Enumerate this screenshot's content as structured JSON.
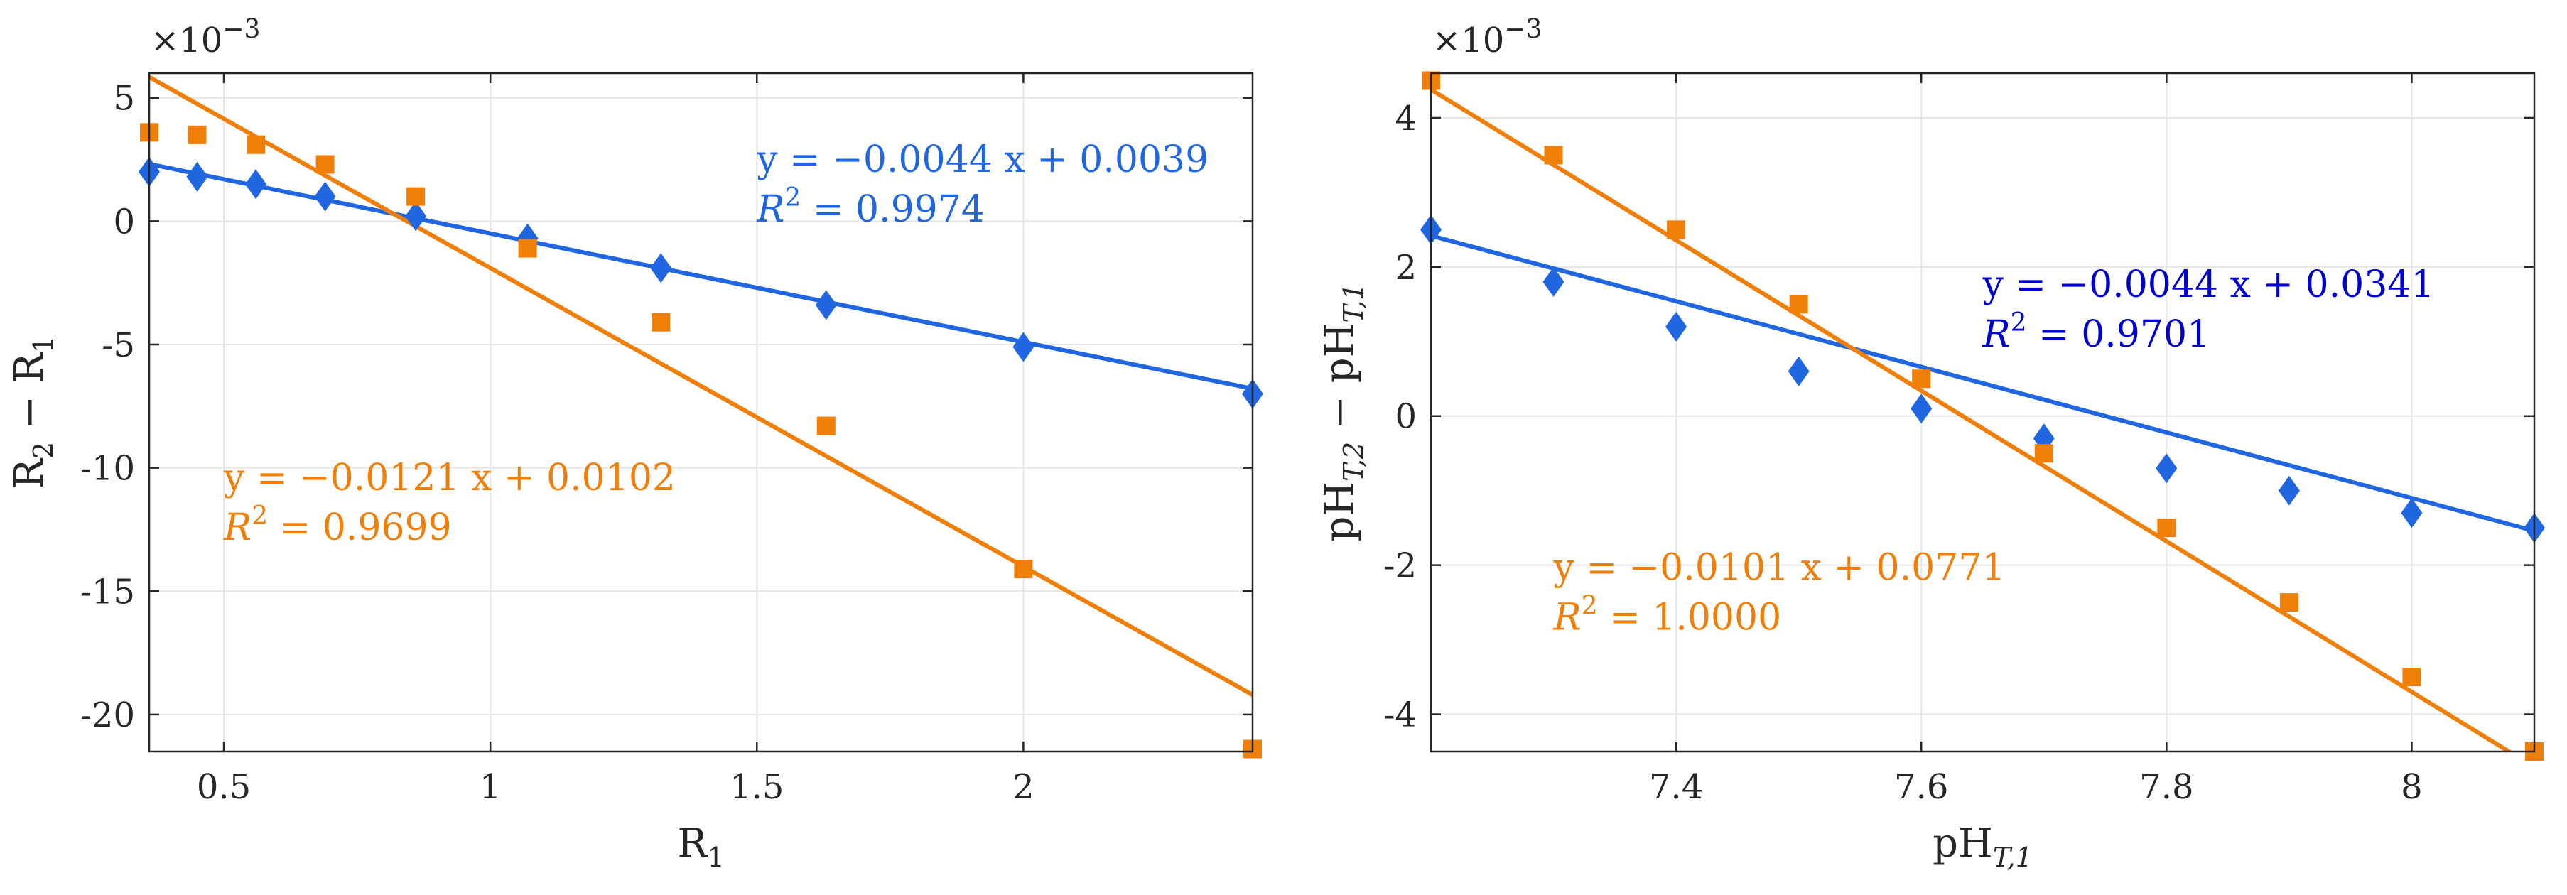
{
  "colors": {
    "blue": "#1f66e0",
    "orange": "#f07f0a",
    "annotation_blue_right": "#0000cc",
    "grid": "#e6e6e6",
    "axis": "#262626"
  },
  "marker_shapes": {
    "blue": "diamond",
    "orange": "square"
  },
  "chart_data": [
    {
      "type": "scatter",
      "xlabel": "R",
      "xlabel_sub": "1",
      "ylabel": "R",
      "ylabel_sub1": "2",
      "ylabel_mid": " − R",
      "ylabel_sub2": "1",
      "y_exponent": "×10",
      "y_exponent_power": "−3",
      "xlim": [
        0.36,
        2.43
      ],
      "ylim": [
        -21.5,
        6
      ],
      "x_ticks": [
        0.5,
        1,
        1.5,
        2
      ],
      "x_tick_labels": [
        "0.5",
        "1",
        "1.5",
        "2"
      ],
      "y_ticks": [
        -20,
        -15,
        -10,
        -5,
        0,
        5
      ],
      "y_tick_labels": [
        "-20",
        "-15",
        "-10",
        "-5",
        "0",
        "5"
      ],
      "grid": true,
      "series": [
        {
          "color": "blue",
          "marker": "diamond",
          "x": [
            0.36,
            0.45,
            0.56,
            0.69,
            0.86,
            1.07,
            1.32,
            1.63,
            2.0,
            2.43
          ],
          "y": [
            2.0,
            1.8,
            1.5,
            1.0,
            0.2,
            -0.7,
            -1.9,
            -3.4,
            -5.1,
            -7.0
          ],
          "fit": {
            "slope": -4.4,
            "intercept": 3.9
          }
        },
        {
          "color": "orange",
          "marker": "square",
          "x": [
            0.36,
            0.45,
            0.56,
            0.69,
            0.86,
            1.07,
            1.32,
            1.63,
            2.0,
            2.43
          ],
          "y": [
            3.6,
            3.5,
            3.1,
            2.3,
            1.0,
            -1.1,
            -4.1,
            -8.3,
            -14.1,
            -21.4
          ],
          "fit": {
            "slope": -12.1,
            "intercept": 10.2
          }
        }
      ],
      "annotations": [
        {
          "color": "blue",
          "line1": "y = −0.0044 x + 0.0039",
          "r2_label": "R",
          "r2_sup": "2",
          "r2_value": " = 0.9974",
          "anchor_x": 1.5,
          "anchor_y": 2.0
        },
        {
          "color": "orange",
          "line1": "y = −0.0121 x + 0.0102",
          "r2_label": "R",
          "r2_sup": "2",
          "r2_value": " = 0.9699",
          "anchor_x": 0.5,
          "anchor_y": -10.9
        }
      ]
    },
    {
      "type": "scatter",
      "xlabel": "pH",
      "xlabel_sub": "T,1",
      "ylabel": "pH",
      "ylabel_sub1": "T,2",
      "ylabel_mid": " − pH",
      "ylabel_sub2": "T,1",
      "y_exponent": "×10",
      "y_exponent_power": "−3",
      "xlim": [
        7.2,
        8.1
      ],
      "ylim": [
        -4.5,
        4.6
      ],
      "x_ticks": [
        7.4,
        7.6,
        7.8,
        8.0
      ],
      "x_tick_labels": [
        "7.4",
        "7.6",
        "7.8",
        "8"
      ],
      "y_ticks": [
        -4,
        -2,
        0,
        2,
        4
      ],
      "y_tick_labels": [
        "-4",
        "-2",
        "0",
        "2",
        "4"
      ],
      "grid": true,
      "series": [
        {
          "color": "blue",
          "marker": "diamond",
          "x": [
            7.2,
            7.3,
            7.4,
            7.5,
            7.6,
            7.7,
            7.8,
            7.9,
            8.0,
            8.1
          ],
          "y": [
            2.5,
            1.8,
            1.2,
            0.6,
            0.1,
            -0.3,
            -0.7,
            -1.0,
            -1.3,
            -1.5
          ],
          "fit": {
            "slope": -4.4,
            "intercept": 34.1
          }
        },
        {
          "color": "orange",
          "marker": "square",
          "x": [
            7.2,
            7.3,
            7.4,
            7.5,
            7.6,
            7.7,
            7.8,
            7.9,
            8.0,
            8.1
          ],
          "y": [
            4.5,
            3.5,
            2.5,
            1.5,
            0.5,
            -0.5,
            -1.5,
            -2.5,
            -3.5,
            -4.5
          ],
          "fit": {
            "slope": -10.1,
            "intercept": 77.1
          }
        }
      ],
      "annotations": [
        {
          "color": "annotation_blue_right",
          "line1": "y = −0.0044 x + 0.0341",
          "r2_label": "R",
          "r2_sup": "2",
          "r2_value": " = 0.9701",
          "anchor_x": 7.65,
          "anchor_y": 1.6
        },
        {
          "color": "orange",
          "line1": "y = −0.0101 x + 0.0771",
          "r2_label": "R",
          "r2_sup": "2",
          "r2_value": " = 1.0000",
          "anchor_x": 7.3,
          "anchor_y": -2.2
        }
      ]
    }
  ]
}
